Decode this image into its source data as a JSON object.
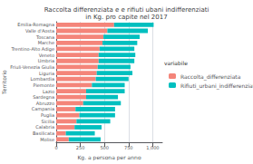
{
  "chart_data": {
    "type": "bar",
    "orientation": "horizontal",
    "stacked": true,
    "title": "Raccolta differenziata e e rifiuti ubani indifferenziati\nin Kg. pro capite nel 2017",
    "xlabel": "Kg. a persona per anno",
    "ylabel": "Territorio",
    "legend_title": "variabile",
    "legend": "right",
    "grid": true,
    "categories": [
      "Molise",
      "Basilicata",
      "Calabria",
      "Sicilia",
      "Puglia",
      "Campania",
      "Abruzzo",
      "Sardegna",
      "Lazio",
      "Piemonte",
      "Lombardia",
      "Liguria",
      "Friuli-Venezia Giulia",
      "Umbria",
      "Veneto",
      "Trentino-Alto Adige",
      "Marche",
      "Toscana",
      "Valle d'Aosta",
      "Emilia-Romagna"
    ],
    "series": [
      {
        "name": "Raccolta_differenziata",
        "color": "#F4857A",
        "values": [
          130,
          100,
          190,
          210,
          240,
          200,
          280,
          310,
          310,
          370,
          410,
          420,
          430,
          440,
          440,
          450,
          480,
          490,
          530,
          600
        ]
      },
      {
        "name": "Rifiuti_urbani_indifferenziati",
        "color": "#00BFBF",
        "values": [
          330,
          300,
          280,
          350,
          370,
          410,
          390,
          330,
          400,
          340,
          340,
          370,
          340,
          370,
          380,
          360,
          360,
          375,
          420,
          410
        ]
      }
    ],
    "xlim": [
      0,
      1100
    ],
    "xticks": [
      0,
      250,
      500,
      750,
      1000
    ]
  }
}
